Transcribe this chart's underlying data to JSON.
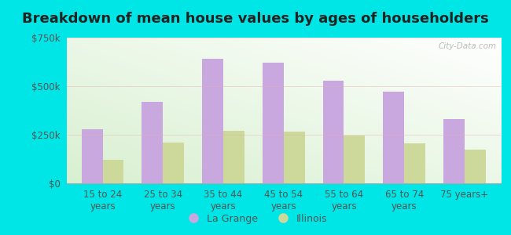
{
  "title": "Breakdown of mean house values by ages of householders",
  "categories": [
    "15 to 24\nyears",
    "25 to 34\nyears",
    "35 to 44\nyears",
    "45 to 54\nyears",
    "55 to 64\nyears",
    "65 to 74\nyears",
    "75 years+"
  ],
  "lagrange_values": [
    280000,
    420000,
    640000,
    620000,
    530000,
    470000,
    330000
  ],
  "illinois_values": [
    120000,
    210000,
    270000,
    265000,
    245000,
    205000,
    175000
  ],
  "lagrange_color": "#c9a8e0",
  "illinois_color": "#cdd99a",
  "ylim": [
    0,
    750000
  ],
  "yticks": [
    0,
    250000,
    500000,
    750000
  ],
  "ytick_labels": [
    "$0",
    "$250k",
    "$500k",
    "$750k"
  ],
  "legend_labels": [
    "La Grange",
    "Illinois"
  ],
  "outer_background": "#00e5e5",
  "watermark": "City-Data.com",
  "bar_width": 0.35,
  "grid_color": "#e8b0b0",
  "title_fontsize": 13,
  "tick_fontsize": 8.5,
  "legend_fontsize": 9
}
